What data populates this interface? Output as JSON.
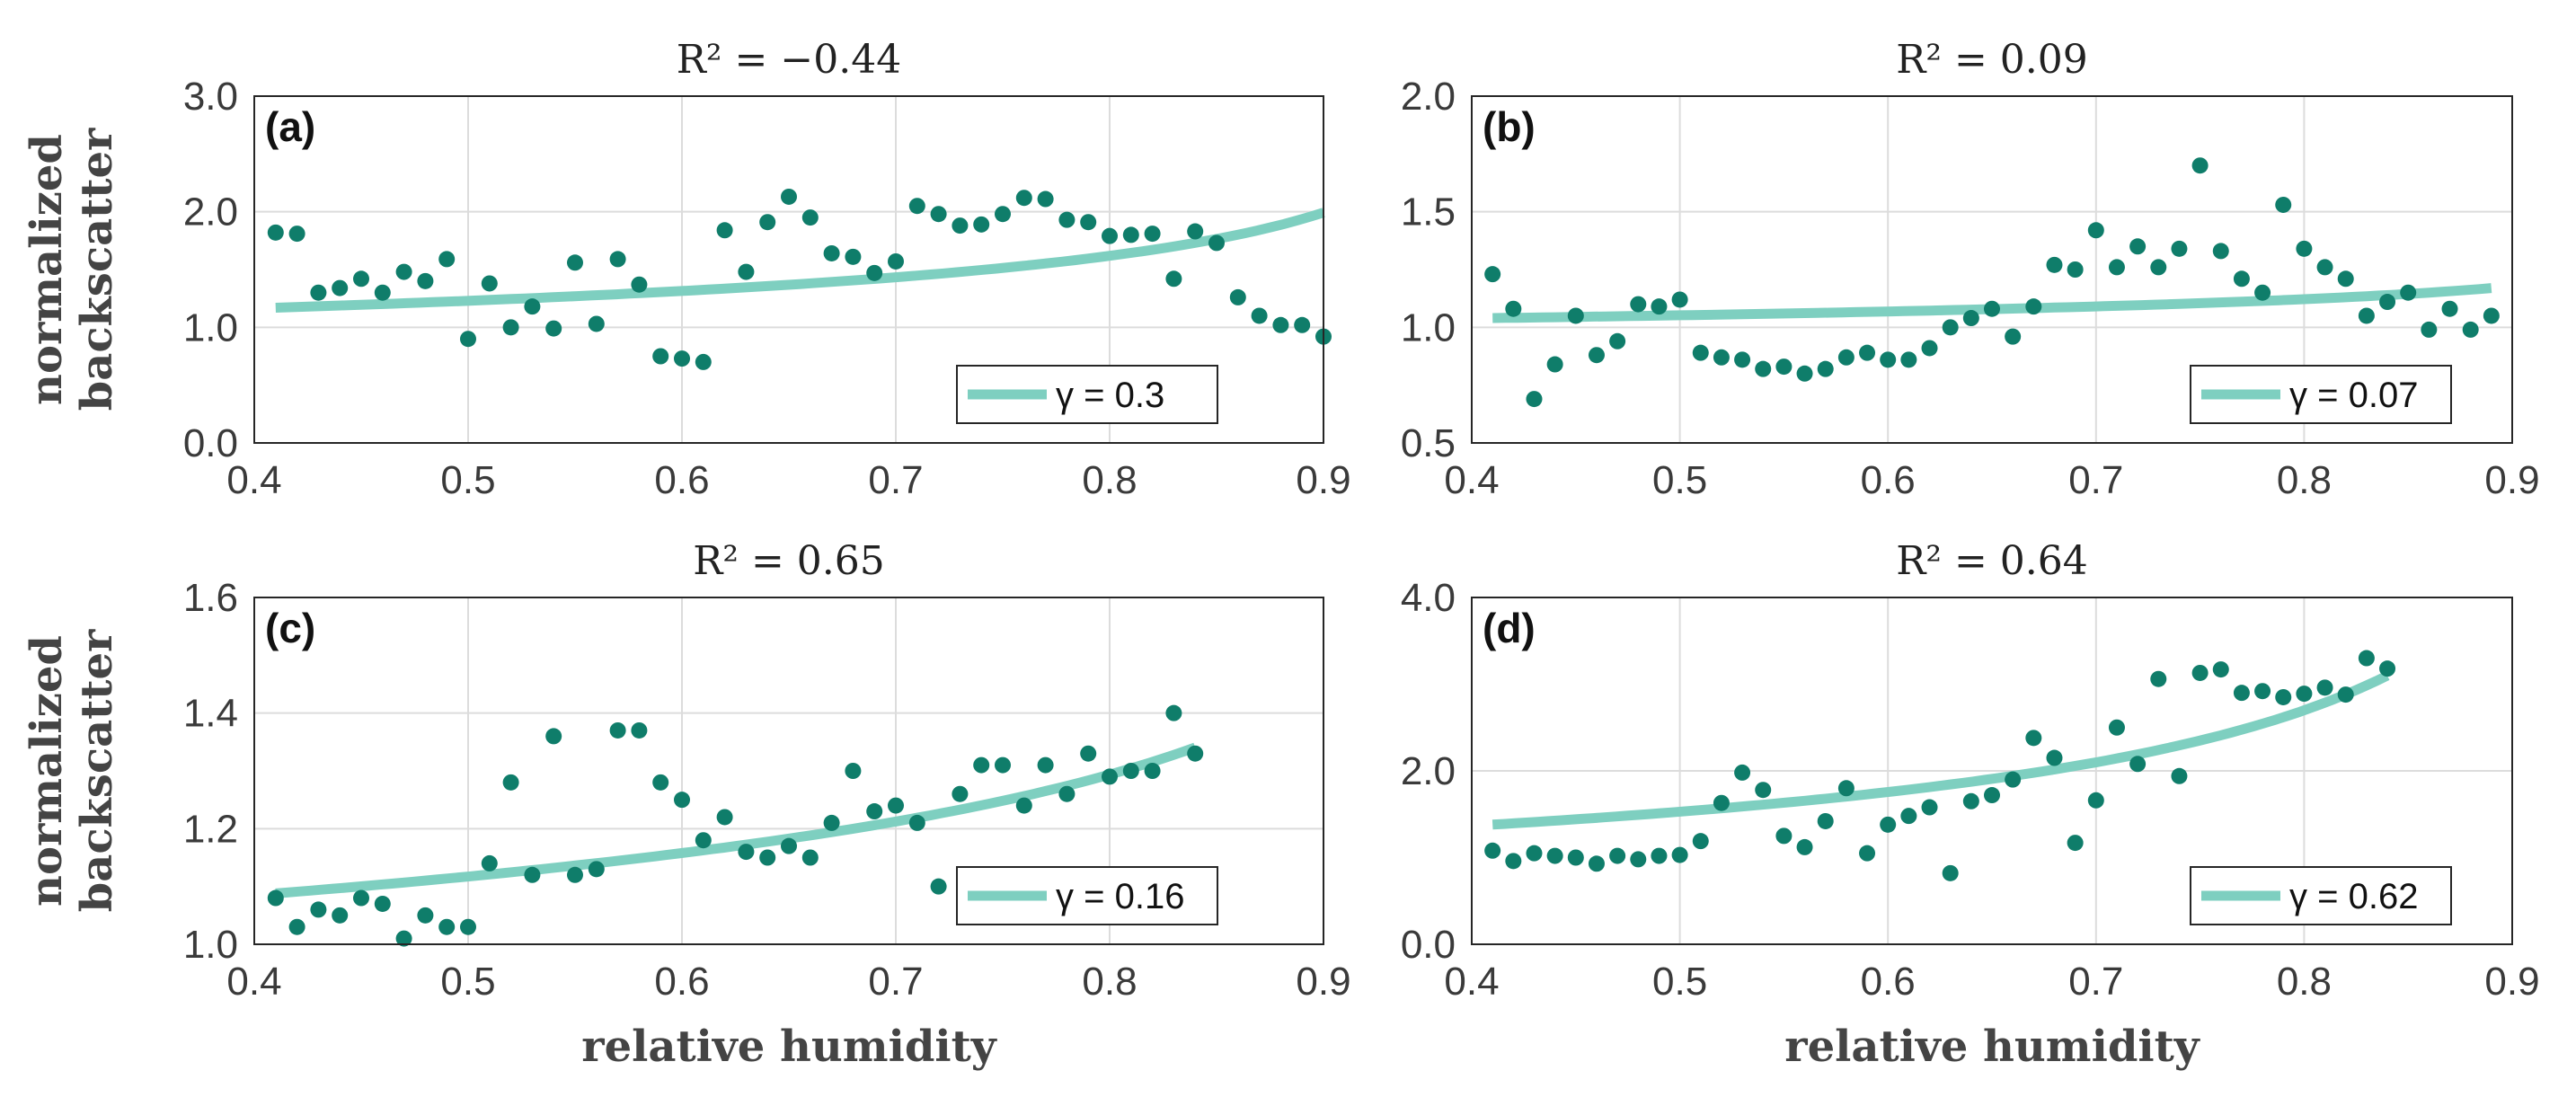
{
  "colors": {
    "points": "#0f7d6a",
    "fit": "#7ecfc0",
    "grid": "#dcdcdc",
    "axis": "#262626"
  },
  "axis_labels": {
    "x": "relative humidity",
    "y_line1": "normalized",
    "y_line2": "backscatter"
  },
  "chart_data": [
    {
      "type": "scatter",
      "panel_label": "(a)",
      "title": "R² = −0.44",
      "legend_label": "γ = 0.3",
      "xlabel": "",
      "ylabel": "normalized backscatter",
      "xlim": [
        0.4,
        0.9
      ],
      "ylim": [
        0.0,
        3.0
      ],
      "xticks": [
        "0.4",
        "0.5",
        "0.6",
        "0.7",
        "0.8",
        "0.9"
      ],
      "yticks": [
        "0.0",
        "1.0",
        "2.0",
        "3.0"
      ],
      "ytick_values": [
        0.0,
        1.0,
        2.0,
        3.0
      ],
      "fit": {
        "a": 1.17,
        "gamma": 0.3,
        "x0": 0.41,
        "x1": 0.9
      },
      "x": [
        0.41,
        0.42,
        0.43,
        0.44,
        0.45,
        0.46,
        0.47,
        0.48,
        0.49,
        0.5,
        0.51,
        0.52,
        0.53,
        0.54,
        0.55,
        0.56,
        0.57,
        0.58,
        0.59,
        0.6,
        0.61,
        0.62,
        0.63,
        0.64,
        0.65,
        0.66,
        0.67,
        0.68,
        0.69,
        0.7,
        0.71,
        0.72,
        0.73,
        0.74,
        0.75,
        0.76,
        0.77,
        0.78,
        0.79,
        0.8,
        0.81,
        0.82,
        0.83,
        0.84,
        0.85,
        0.86,
        0.87,
        0.88,
        0.89,
        0.9
      ],
      "y": [
        1.82,
        1.81,
        1.3,
        1.34,
        1.42,
        1.3,
        1.48,
        1.4,
        1.59,
        0.9,
        1.38,
        1.0,
        1.18,
        0.99,
        1.56,
        1.03,
        1.59,
        1.37,
        0.75,
        0.73,
        0.7,
        1.84,
        1.48,
        1.91,
        2.13,
        1.95,
        1.64,
        1.61,
        1.47,
        1.57,
        2.05,
        1.98,
        1.88,
        1.89,
        1.98,
        2.12,
        2.11,
        1.93,
        1.91,
        1.79,
        1.8,
        1.81,
        1.42,
        1.83,
        1.73,
        1.26,
        1.1,
        1.02,
        1.02,
        0.92
      ]
    },
    {
      "type": "scatter",
      "panel_label": "(b)",
      "title": "R² = 0.09",
      "legend_label": "γ = 0.07",
      "xlabel": "",
      "ylabel": "",
      "xlim": [
        0.4,
        0.9
      ],
      "ylim": [
        0.5,
        2.0
      ],
      "xticks": [
        "0.4",
        "0.5",
        "0.6",
        "0.7",
        "0.8",
        "0.9"
      ],
      "yticks": [
        "0.5",
        "1.0",
        "1.5",
        "2.0"
      ],
      "ytick_values": [
        0.5,
        1.0,
        1.5,
        2.0
      ],
      "fit": {
        "a": 1.04,
        "gamma": 0.07,
        "x0": 0.41,
        "x1": 0.89
      },
      "x": [
        0.41,
        0.42,
        0.43,
        0.44,
        0.45,
        0.46,
        0.47,
        0.48,
        0.49,
        0.5,
        0.51,
        0.52,
        0.53,
        0.54,
        0.55,
        0.56,
        0.57,
        0.58,
        0.59,
        0.6,
        0.61,
        0.62,
        0.63,
        0.64,
        0.65,
        0.66,
        0.67,
        0.68,
        0.69,
        0.7,
        0.71,
        0.72,
        0.73,
        0.74,
        0.75,
        0.76,
        0.77,
        0.78,
        0.79,
        0.8,
        0.81,
        0.82,
        0.83,
        0.84,
        0.85,
        0.86,
        0.87,
        0.88,
        0.89
      ],
      "y": [
        1.23,
        1.08,
        0.69,
        0.84,
        1.05,
        0.88,
        0.94,
        1.1,
        1.09,
        1.12,
        0.89,
        0.87,
        0.86,
        0.82,
        0.83,
        0.8,
        0.82,
        0.87,
        0.89,
        0.86,
        0.86,
        0.91,
        1.0,
        1.04,
        1.08,
        0.96,
        1.09,
        1.27,
        1.25,
        1.42,
        1.26,
        1.35,
        1.26,
        1.34,
        1.7,
        1.33,
        1.21,
        1.15,
        1.53,
        1.34,
        1.26,
        1.21,
        1.05,
        1.11,
        1.15,
        0.99,
        1.08,
        0.99,
        1.05
      ]
    },
    {
      "type": "scatter",
      "panel_label": "(c)",
      "title": "R² = 0.65",
      "legend_label": "γ = 0.16",
      "xlabel": "relative humidity",
      "ylabel": "normalized backscatter",
      "xlim": [
        0.4,
        0.9
      ],
      "ylim": [
        1.0,
        1.6
      ],
      "xticks": [
        "0.4",
        "0.5",
        "0.6",
        "0.7",
        "0.8",
        "0.9"
      ],
      "yticks": [
        "1.0",
        "1.2",
        "1.4",
        "1.6"
      ],
      "ytick_values": [
        1.0,
        1.2,
        1.4,
        1.6
      ],
      "fit": {
        "a": 1.088,
        "gamma": 0.16,
        "x0": 0.41,
        "x1": 0.84
      },
      "x": [
        0.41,
        0.42,
        0.43,
        0.44,
        0.45,
        0.46,
        0.47,
        0.48,
        0.49,
        0.5,
        0.51,
        0.52,
        0.53,
        0.54,
        0.55,
        0.56,
        0.57,
        0.58,
        0.59,
        0.6,
        0.61,
        0.62,
        0.63,
        0.64,
        0.65,
        0.66,
        0.67,
        0.68,
        0.69,
        0.7,
        0.71,
        0.72,
        0.73,
        0.74,
        0.75,
        0.76,
        0.77,
        0.78,
        0.79,
        0.8,
        0.81,
        0.82,
        0.83,
        0.84
      ],
      "y": [
        1.08,
        1.03,
        1.06,
        1.05,
        1.08,
        1.07,
        1.01,
        1.05,
        1.03,
        1.03,
        1.14,
        1.28,
        1.12,
        1.36,
        1.12,
        1.13,
        1.37,
        1.37,
        1.28,
        1.25,
        1.18,
        1.22,
        1.16,
        1.15,
        1.17,
        1.15,
        1.21,
        1.3,
        1.23,
        1.24,
        1.21,
        1.1,
        1.26,
        1.31,
        1.31,
        1.24,
        1.31,
        1.26,
        1.33,
        1.29,
        1.3,
        1.3,
        1.4,
        1.33
      ]
    },
    {
      "type": "scatter",
      "panel_label": "(d)",
      "title": "R² = 0.64",
      "legend_label": "γ = 0.62",
      "xlabel": "relative humidity",
      "ylabel": "",
      "xlim": [
        0.4,
        0.9
      ],
      "ylim": [
        0.0,
        4.0
      ],
      "xticks": [
        "0.4",
        "0.5",
        "0.6",
        "0.7",
        "0.8",
        "0.9"
      ],
      "yticks": [
        "0.0",
        "2.0",
        "4.0"
      ],
      "ytick_values": [
        0.0,
        2.0,
        4.0
      ],
      "fit": {
        "a": 1.38,
        "gamma": 0.62,
        "x0": 0.41,
        "x1": 0.84
      },
      "x": [
        0.41,
        0.42,
        0.43,
        0.44,
        0.45,
        0.46,
        0.47,
        0.48,
        0.49,
        0.5,
        0.51,
        0.52,
        0.53,
        0.54,
        0.55,
        0.56,
        0.57,
        0.58,
        0.59,
        0.6,
        0.61,
        0.62,
        0.63,
        0.64,
        0.65,
        0.66,
        0.67,
        0.68,
        0.69,
        0.7,
        0.71,
        0.72,
        0.73,
        0.74,
        0.75,
        0.76,
        0.77,
        0.78,
        0.79,
        0.8,
        0.81,
        0.82,
        0.83,
        0.84
      ],
      "y": [
        1.08,
        0.96,
        1.05,
        1.02,
        1.0,
        0.93,
        1.02,
        0.98,
        1.02,
        1.03,
        1.19,
        1.63,
        1.98,
        1.78,
        1.25,
        1.12,
        1.42,
        1.8,
        1.05,
        1.38,
        1.48,
        1.58,
        0.82,
        1.65,
        1.72,
        1.9,
        2.38,
        2.15,
        1.17,
        1.66,
        2.5,
        2.08,
        3.06,
        1.94,
        3.13,
        3.17,
        2.9,
        2.92,
        2.85,
        2.89,
        2.96,
        2.88,
        3.3,
        3.18
      ]
    }
  ]
}
